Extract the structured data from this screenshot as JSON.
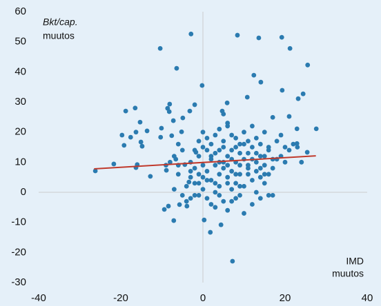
{
  "chart_data": {
    "type": "scatter",
    "ylabel": [
      "Bkt/cap.",
      "muutos"
    ],
    "xlabel": [
      "IMD",
      "muutos"
    ],
    "color": "#2b7bb0",
    "xlim": [
      -40,
      40
    ],
    "xticks": [
      -40,
      -20,
      0,
      20,
      40
    ],
    "ylim": [
      -30,
      60
    ],
    "yticks": [
      -30,
      -20,
      -10,
      0,
      10,
      20,
      30,
      40,
      50,
      60
    ],
    "grid": false,
    "zero_lines": true,
    "trendline": {
      "x": [
        -26.5,
        27.5
      ],
      "values": [
        7.8,
        12.1
      ],
      "color": "#c0392b"
    },
    "x": [
      -26.2,
      -21.7,
      -19.7,
      -19.2,
      -18.8,
      -17.6,
      -16.5,
      -16.3,
      -16,
      -16.3,
      -15.3,
      -14.8,
      -15.1,
      -13.6,
      -12.8,
      -10.4,
      -10.3,
      -10.1,
      -9.4,
      -8.4,
      -8.9,
      -8.6,
      -8.1,
      -8.2,
      -7.6,
      -7.2,
      -7.1,
      -6.4,
      -6.6,
      -5.7,
      -5.2,
      -4.9,
      -4.4,
      -3.9,
      -3.4,
      -3.2,
      -2.9,
      -2,
      -1.7,
      -0.2,
      0.3,
      1.8,
      4.4,
      4.7,
      5.9,
      7.2,
      8.4,
      10.8,
      12.4,
      13.6,
      14.1,
      17,
      19.2,
      19.3,
      21.2,
      21,
      22.9,
      23.2,
      24.4,
      25.5,
      27.6,
      25.4,
      22.9,
      -3,
      -2,
      -1,
      0,
      1,
      2,
      3,
      4,
      5,
      6,
      7,
      8,
      9,
      10,
      11,
      12,
      13,
      14,
      15,
      16,
      17,
      -4,
      -3,
      -2,
      -1,
      0,
      1,
      2,
      3,
      4,
      5,
      6,
      7,
      8,
      9,
      10,
      11,
      12,
      13,
      14,
      15,
      16,
      -1,
      0,
      1,
      2,
      3,
      4,
      5,
      6,
      7,
      8,
      9,
      10,
      11,
      12,
      13,
      14,
      15,
      16,
      18,
      19,
      20,
      21,
      22,
      23,
      24,
      19,
      20,
      -5,
      -6,
      -7,
      -8,
      -9,
      -6,
      -5,
      -7,
      -4,
      -3,
      -2,
      -1,
      0,
      1,
      2,
      3,
      4,
      5,
      6,
      7,
      8,
      9,
      10,
      11,
      12,
      13,
      14,
      15,
      16,
      17,
      17,
      18,
      5,
      6,
      4,
      3,
      2,
      1,
      0,
      -1,
      7,
      8,
      9,
      10,
      11,
      12,
      13,
      14,
      15,
      6,
      7,
      8,
      9,
      4,
      3,
      5,
      6,
      -2,
      -3,
      -6
    ],
    "values": [
      7.1,
      9.4,
      19,
      15.6,
      27,
      18.3,
      28,
      20,
      9.2,
      8.2,
      23.3,
      15.3,
      16.7,
      20.4,
      5.3,
      47.8,
      18.3,
      21.3,
      -5.7,
      -4.6,
      7.3,
      27.9,
      29.3,
      26.8,
      18.8,
      23.8,
      -9.4,
      41.2,
      11,
      -4.1,
      20.1,
      24.7,
      9.2,
      -4.6,
      3.4,
      27,
      52.6,
      29.1,
      13.3,
      35.5,
      -9.2,
      -13.3,
      -10.8,
      27,
      29.7,
      -22.9,
      52.2,
      31.6,
      38.9,
      51.3,
      36.6,
      24.9,
      51.5,
      33.9,
      47.8,
      25.2,
      21.1,
      31.1,
      32.7,
      42.3,
      21.1,
      13.3,
      16.2,
      10,
      8,
      12,
      9,
      7,
      11,
      13,
      10,
      8,
      12,
      14,
      10,
      9,
      11,
      13,
      15,
      10,
      8,
      12,
      14,
      11,
      2,
      5,
      -1,
      3,
      1,
      -2,
      4,
      0,
      2,
      -3,
      5,
      1,
      3,
      -1,
      2,
      6,
      4,
      0,
      -2,
      3,
      -1,
      17,
      20,
      18,
      16,
      19,
      21,
      17,
      23,
      19,
      18,
      16,
      20,
      17,
      22,
      18,
      16,
      20,
      15,
      17,
      19,
      15,
      14,
      16,
      15,
      10,
      12,
      10,
      14,
      16,
      12,
      10,
      9,
      6,
      -1,
      1,
      -3,
      7,
      14,
      6,
      15,
      4,
      -4,
      -5,
      6,
      15,
      -6,
      7,
      -2,
      6,
      -7,
      8,
      -4,
      7,
      5,
      9,
      6,
      -1,
      8,
      11,
      26,
      22,
      14,
      9,
      12,
      14,
      5,
      -1,
      11,
      15,
      13,
      16,
      9,
      11,
      13,
      12,
      6,
      3,
      -3,
      6,
      2,
      -1,
      3,
      10,
      9,
      3,
      -2,
      9
    ]
  }
}
